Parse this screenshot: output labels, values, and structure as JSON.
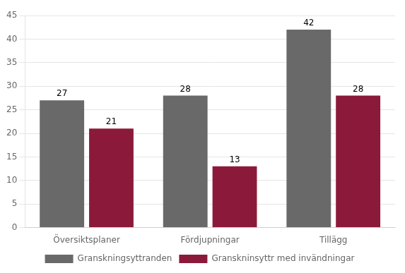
{
  "chart_data": {
    "type": "bar",
    "categories": [
      "Översiktsplaner",
      "Fördjupningar",
      "Tillägg"
    ],
    "series": [
      {
        "name": "Granskningsyttranden",
        "color": "#696969",
        "values": [
          27,
          28,
          42
        ]
      },
      {
        "name": "Granskninsyttr med invändningar",
        "color": "#8B1A3A",
        "values": [
          21,
          13,
          28
        ]
      }
    ],
    "ylim": [
      0,
      45
    ],
    "yticks": [
      0,
      5,
      10,
      15,
      20,
      25,
      30,
      35,
      40,
      45
    ],
    "grid": true,
    "legend": "bottom",
    "data_labels": true
  }
}
